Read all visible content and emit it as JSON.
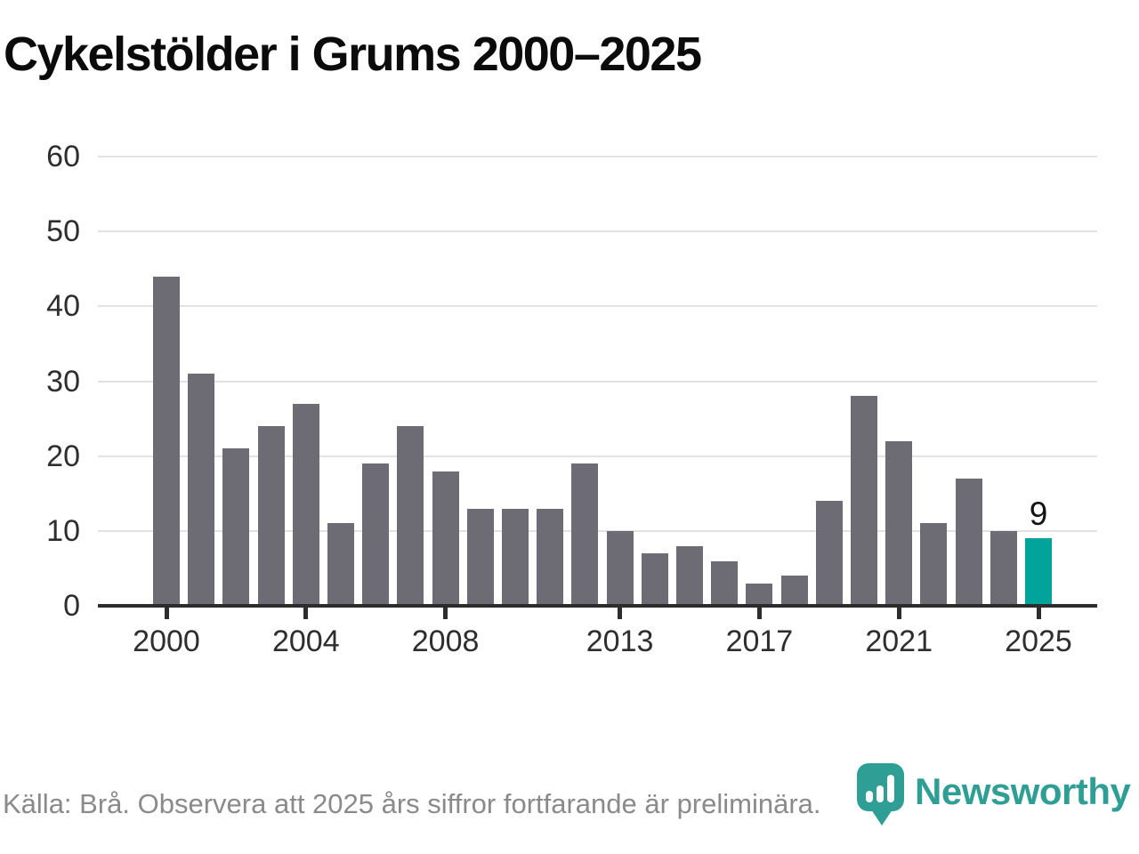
{
  "title": "Cykelstölder i Grums 2000–2025",
  "source_note": "Källa: Brå. Observera att 2025 års siffror fortfarande är preliminära.",
  "brand": {
    "name": "Newsworthy",
    "icon": "bar-chart-pin-icon"
  },
  "colors": {
    "bar": "#6d6c74",
    "highlight": "#00a49b",
    "brand": "#2f9e95",
    "grid": "#e2e2e2",
    "axis": "#2d2d2d"
  },
  "chart_data": {
    "type": "bar",
    "title": "Cykelstölder i Grums 2000–2025",
    "categories": [
      2000,
      2001,
      2002,
      2003,
      2004,
      2005,
      2006,
      2007,
      2008,
      2009,
      2010,
      2011,
      2012,
      2013,
      2014,
      2015,
      2016,
      2017,
      2018,
      2019,
      2020,
      2021,
      2022,
      2023,
      2024,
      2025
    ],
    "values": [
      44,
      31,
      21,
      24,
      27,
      11,
      19,
      24,
      18,
      13,
      13,
      13,
      19,
      10,
      7,
      8,
      6,
      3,
      4,
      14,
      28,
      22,
      11,
      17,
      10,
      9
    ],
    "highlight_index": 25,
    "bar_label": {
      "index": 25,
      "text": "9"
    },
    "xlabel": "",
    "ylabel": "",
    "ylim": [
      0,
      60
    ],
    "yticks": [
      0,
      10,
      20,
      30,
      40,
      50,
      60
    ],
    "xticks": [
      2000,
      2004,
      2008,
      2013,
      2017,
      2021,
      2025
    ],
    "grid": true,
    "legend": false
  }
}
